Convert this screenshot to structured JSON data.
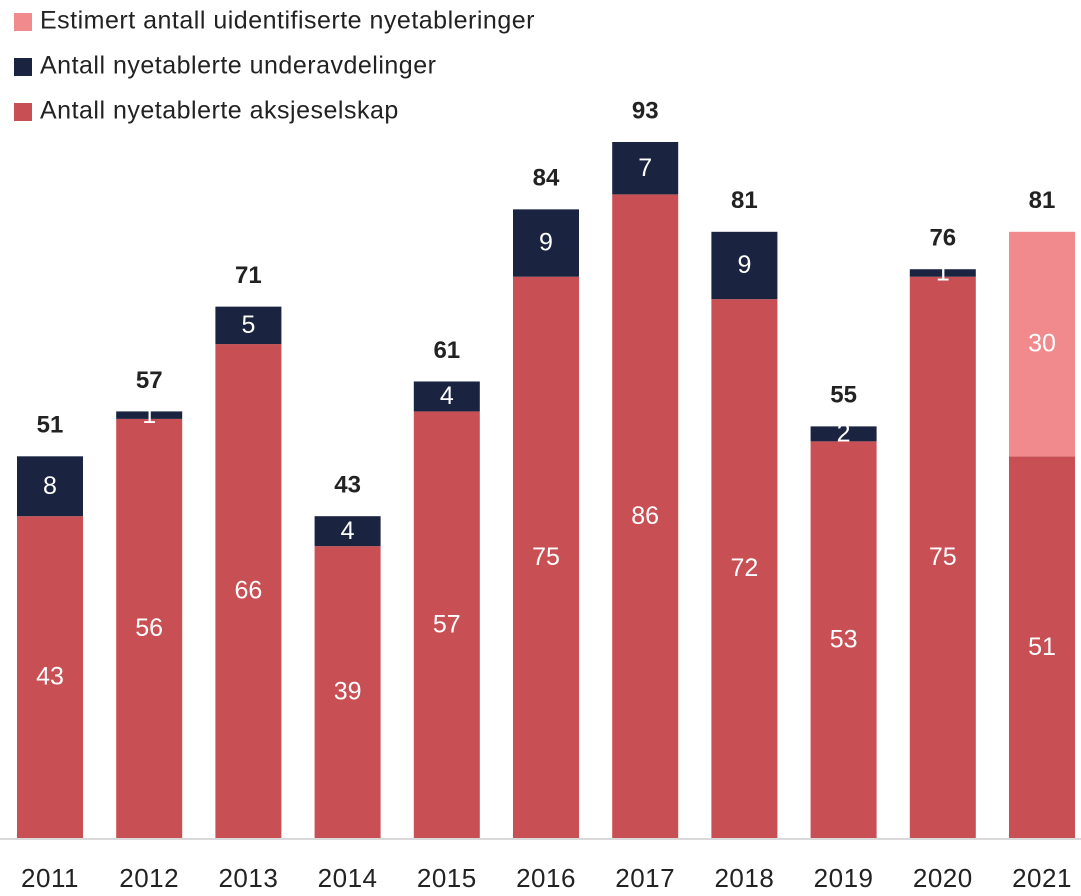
{
  "chart_data": {
    "type": "stacked-bar",
    "categories": [
      "2011",
      "2012",
      "2013",
      "2014",
      "2015",
      "2016",
      "2017",
      "2018",
      "2019",
      "2020",
      "2021"
    ],
    "series": [
      {
        "name": "Antall nyetablerte aksjeselskap",
        "color": "#c85055",
        "values": [
          43,
          56,
          66,
          39,
          57,
          75,
          86,
          72,
          53,
          75,
          51
        ]
      },
      {
        "name": "Antall nyetablerte underavdelinger",
        "color": "#1a2340",
        "values": [
          8,
          1,
          5,
          4,
          4,
          9,
          7,
          9,
          2,
          1,
          null
        ]
      },
      {
        "name": "Estimert antall uidentifiserte nyetableringer",
        "color": "#f08a8c",
        "values": [
          null,
          null,
          null,
          null,
          null,
          null,
          null,
          null,
          null,
          null,
          30
        ]
      }
    ],
    "totals": [
      51,
      57,
      71,
      43,
      61,
      84,
      93,
      81,
      55,
      76,
      81
    ]
  }
}
